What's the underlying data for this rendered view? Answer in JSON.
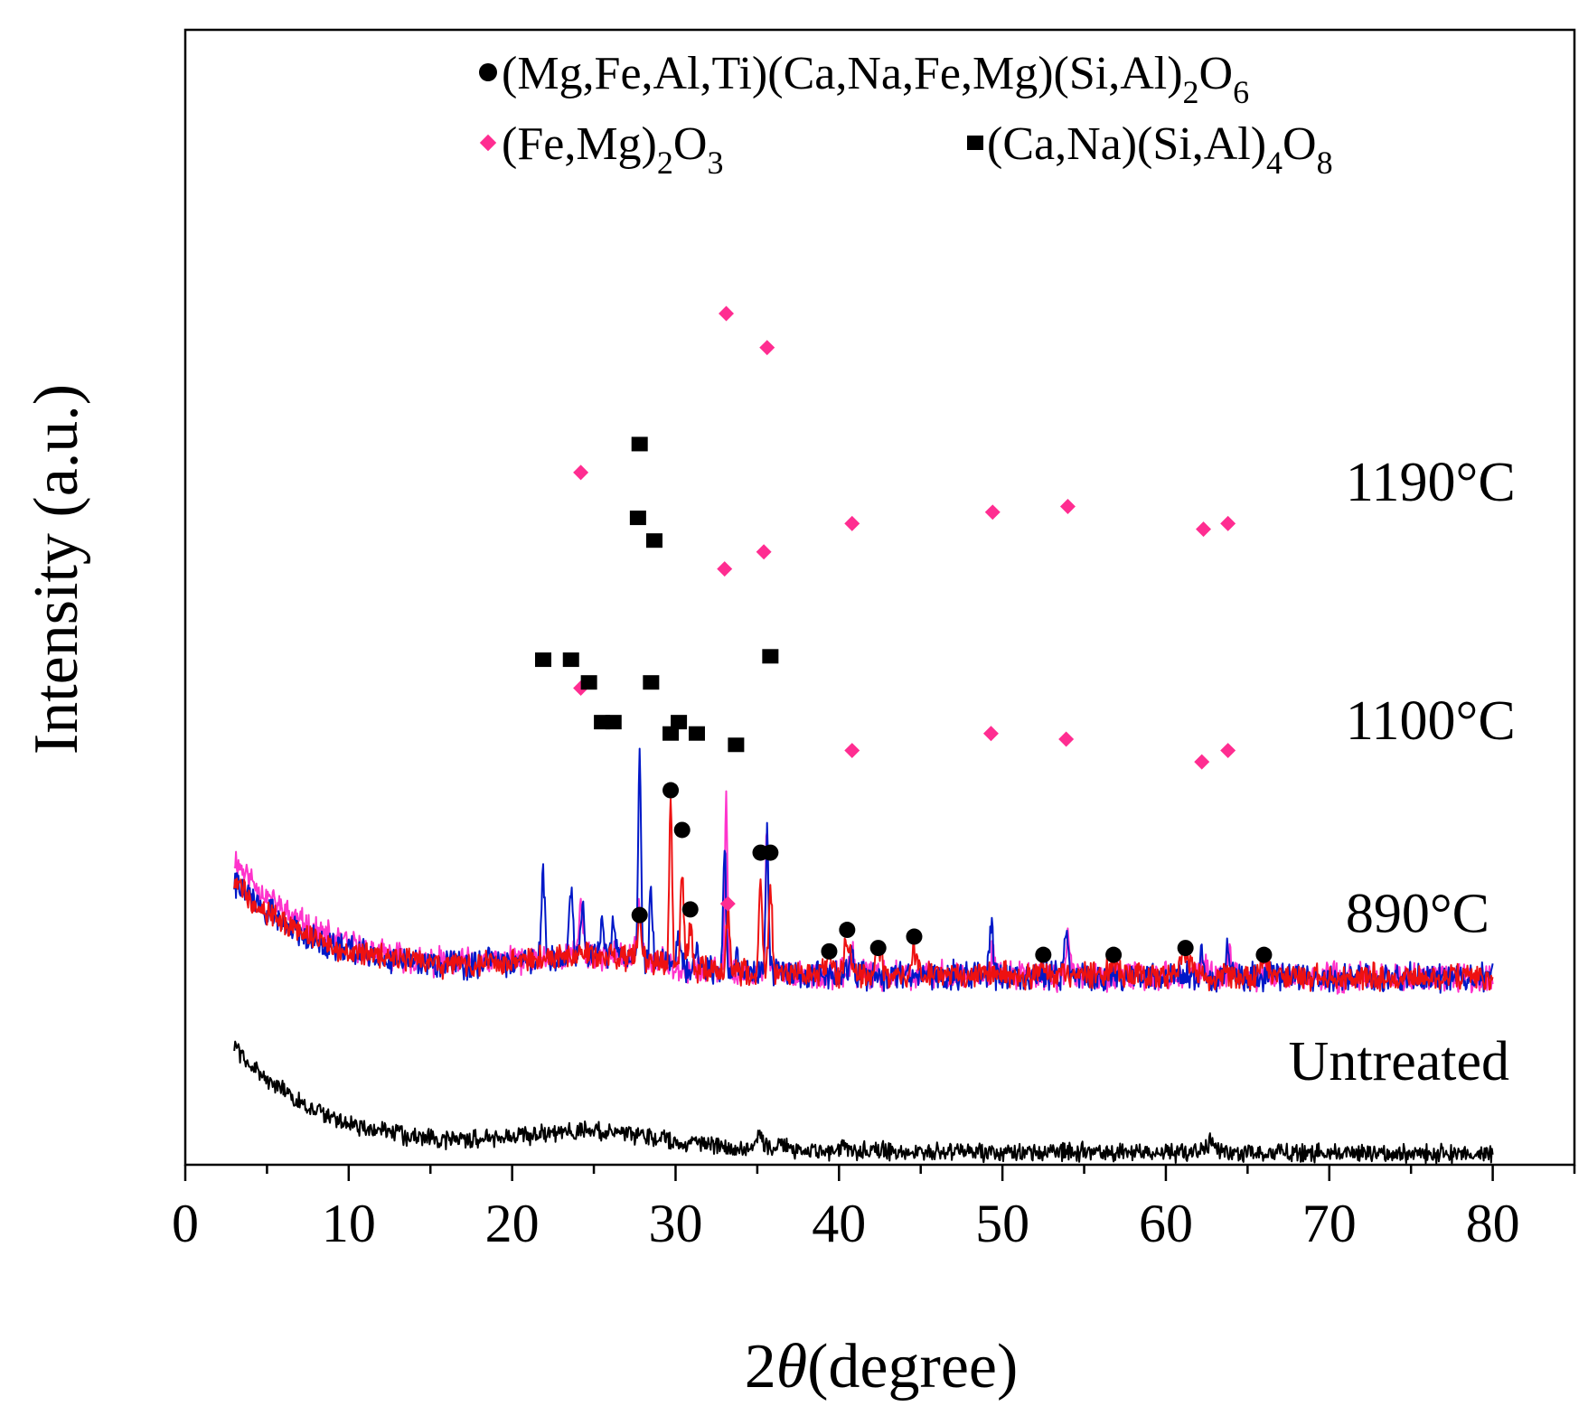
{
  "chart_data": {
    "type": "line",
    "title": "",
    "xlabel": {
      "prefix": "2",
      "symbol": "θ",
      "suffix": "(degree)"
    },
    "ylabel": "Intensity (a.u.)",
    "xlim": [
      0,
      85
    ],
    "ylim": [
      0,
      100
    ],
    "x_ticks": [
      0,
      10,
      20,
      30,
      40,
      50,
      60,
      70,
      80
    ],
    "y_ticks_labeled": false,
    "legend_position": "top",
    "legend": [
      {
        "key": "pyroxene",
        "marker": "circle",
        "color": "#000000",
        "text": "(Mg,Fe,Al,Ti)(Ca,Na,Fe,Mg)(Si,Al)",
        "sub1": "2",
        "mid": "O",
        "sub2": "6"
      },
      {
        "key": "hematite",
        "marker": "diamond",
        "color": "#ff2d91",
        "text": "(Fe,Mg)",
        "sub1": "2",
        "mid": "O",
        "sub2": "3"
      },
      {
        "key": "feldspar",
        "marker": "square",
        "color": "#000000",
        "text": "(Ca,Na)(Si,Al)",
        "sub1": "4",
        "mid": "O",
        "sub2": "8"
      }
    ],
    "series": [
      {
        "name": "1190°C",
        "color": "#ff33cc",
        "baseline_end": 17,
        "hump_amp": 10,
        "hump_center": 62,
        "noise": 2.0,
        "seed": 11,
        "label_x": 71,
        "label_y": 58.5,
        "peaks": [
          {
            "x": 24.2,
            "h": 4.5,
            "w": 0.18
          },
          {
            "x": 27.8,
            "h": 5,
            "w": 0.2
          },
          {
            "x": 33.1,
            "h": 15.5,
            "w": 0.11
          },
          {
            "x": 35.6,
            "h": 13,
            "w": 0.12
          },
          {
            "x": 40.8,
            "h": 2.2,
            "w": 0.15
          },
          {
            "x": 49.4,
            "h": 2.5,
            "w": 0.15
          },
          {
            "x": 54.0,
            "h": 3.8,
            "w": 0.15
          },
          {
            "x": 62.3,
            "h": 1.8,
            "w": 0.15
          },
          {
            "x": 63.9,
            "h": 2.6,
            "w": 0.15
          }
        ]
      },
      {
        "name": "1100°C",
        "color": "#0018c8",
        "baseline_end": 17,
        "hump_amp": 8,
        "hump_center": 40,
        "noise": 2.0,
        "seed": 22,
        "label_x": 71,
        "label_y": 37.5,
        "peaks": [
          {
            "x": 21.9,
            "h": 7,
            "w": 0.15
          },
          {
            "x": 23.6,
            "h": 6,
            "w": 0.15
          },
          {
            "x": 24.3,
            "h": 4.5,
            "w": 0.15
          },
          {
            "x": 25.5,
            "h": 2.5,
            "w": 0.18
          },
          {
            "x": 26.2,
            "h": 2.5,
            "w": 0.18
          },
          {
            "x": 27.8,
            "h": 19,
            "w": 0.12
          },
          {
            "x": 28.5,
            "h": 6,
            "w": 0.14
          },
          {
            "x": 30.2,
            "h": 3,
            "w": 0.15
          },
          {
            "x": 31.3,
            "h": 2,
            "w": 0.15
          },
          {
            "x": 33.0,
            "h": 11,
            "w": 0.12
          },
          {
            "x": 33.7,
            "h": 1.5,
            "w": 0.15
          },
          {
            "x": 35.6,
            "h": 12,
            "w": 0.13
          },
          {
            "x": 40.8,
            "h": 2.7,
            "w": 0.15
          },
          {
            "x": 49.3,
            "h": 4.8,
            "w": 0.15
          },
          {
            "x": 53.9,
            "h": 4,
            "w": 0.15
          },
          {
            "x": 62.2,
            "h": 2.2,
            "w": 0.15
          },
          {
            "x": 63.8,
            "h": 3,
            "w": 0.15
          }
        ]
      },
      {
        "name": "890°C",
        "color": "#ee1111",
        "baseline_end": 17,
        "hump_amp": 8,
        "hump_center": 20.5,
        "noise": 1.8,
        "seed": 33,
        "label_x": 71,
        "label_y": 20.5,
        "peaks": [
          {
            "x": 27.8,
            "h": 3,
            "w": 0.18
          },
          {
            "x": 29.7,
            "h": 15,
            "w": 0.12
          },
          {
            "x": 30.4,
            "h": 9,
            "w": 0.14
          },
          {
            "x": 30.9,
            "h": 4,
            "w": 0.15
          },
          {
            "x": 33.2,
            "h": 5.5,
            "w": 0.15
          },
          {
            "x": 35.2,
            "h": 8,
            "w": 0.15
          },
          {
            "x": 35.8,
            "h": 8,
            "w": 0.15
          },
          {
            "x": 39.4,
            "h": 1.5,
            "w": 0.25
          },
          {
            "x": 40.5,
            "h": 3,
            "w": 0.25
          },
          {
            "x": 42.4,
            "h": 2,
            "w": 0.3
          },
          {
            "x": 44.6,
            "h": 2.2,
            "w": 0.3
          },
          {
            "x": 52.5,
            "h": 1,
            "w": 0.3
          },
          {
            "x": 56.8,
            "h": 1,
            "w": 0.4
          },
          {
            "x": 61.2,
            "h": 2,
            "w": 0.45
          },
          {
            "x": 66.0,
            "h": 1.5,
            "w": 0.35
          }
        ]
      },
      {
        "name": "Untreated",
        "color": "#000000",
        "baseline_end": 1.5,
        "hump_amp": 9,
        "hump_center": 1.5,
        "noise": 1.3,
        "seed": 44,
        "label_x": 67.5,
        "label_y": 7.5,
        "peaks": [
          {
            "x": 35.2,
            "h": 1.2,
            "w": 0.3
          },
          {
            "x": 36.4,
            "h": 1,
            "w": 0.3
          },
          {
            "x": 40.3,
            "h": 0.5,
            "w": 0.3
          },
          {
            "x": 62.8,
            "h": 0.8,
            "w": 0.6
          }
        ]
      }
    ],
    "phase_markers": [
      {
        "series": "1190°C",
        "type": "hematite",
        "points": [
          [
            24.2,
            61
          ],
          [
            33.1,
            75
          ],
          [
            35.6,
            72
          ],
          [
            40.8,
            56.5
          ],
          [
            49.4,
            57.5
          ],
          [
            54.0,
            58
          ],
          [
            62.3,
            56
          ],
          [
            63.8,
            56.5
          ]
        ]
      },
      {
        "series": "1190°C",
        "type": "feldspar",
        "points": [
          [
            27.8,
            63.5
          ]
        ]
      },
      {
        "series": "1100°C",
        "type": "hematite",
        "points": [
          [
            24.2,
            42
          ],
          [
            33.0,
            52.5
          ],
          [
            35.4,
            54
          ],
          [
            40.8,
            36.5
          ],
          [
            49.3,
            38
          ],
          [
            53.9,
            37.5
          ],
          [
            62.2,
            35.5
          ],
          [
            63.8,
            36.5
          ]
        ]
      },
      {
        "series": "1100°C",
        "type": "feldspar",
        "points": [
          [
            21.9,
            44.5
          ],
          [
            23.6,
            44.5
          ],
          [
            24.7,
            42.5
          ],
          [
            25.5,
            39
          ],
          [
            26.2,
            39
          ],
          [
            27.7,
            57
          ],
          [
            28.7,
            55
          ],
          [
            28.5,
            42.5
          ],
          [
            29.7,
            38
          ],
          [
            30.2,
            39
          ],
          [
            31.3,
            38
          ],
          [
            33.7,
            37
          ],
          [
            35.8,
            44.8
          ]
        ]
      },
      {
        "series": "890°C",
        "type": "pyroxene",
        "points": [
          [
            27.8,
            22
          ],
          [
            29.7,
            33
          ],
          [
            30.4,
            29.5
          ],
          [
            30.9,
            22.5
          ],
          [
            35.2,
            27.5
          ],
          [
            35.8,
            27.5
          ],
          [
            39.4,
            18.8
          ],
          [
            40.5,
            20.7
          ],
          [
            42.4,
            19.1
          ],
          [
            44.6,
            20.1
          ],
          [
            52.5,
            18.5
          ],
          [
            56.8,
            18.5
          ],
          [
            61.2,
            19.1
          ],
          [
            66.0,
            18.5
          ]
        ]
      },
      {
        "series": "890°C",
        "type": "hematite",
        "points": [
          [
            33.2,
            23
          ]
        ]
      }
    ]
  }
}
